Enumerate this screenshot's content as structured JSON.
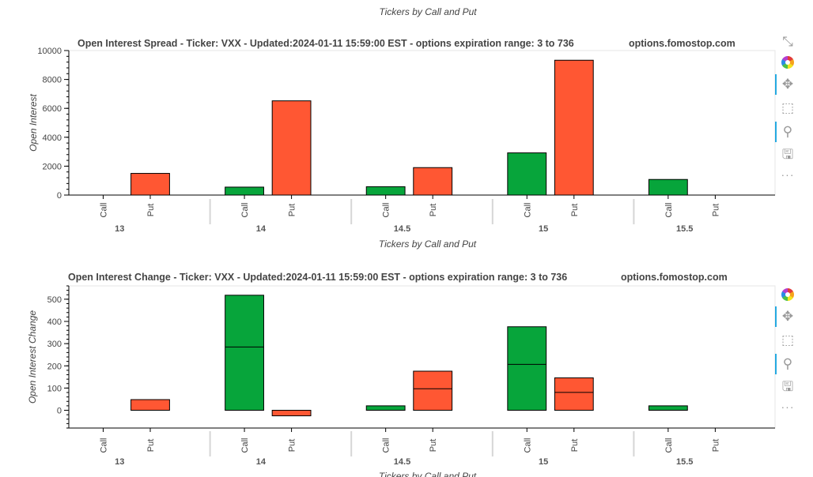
{
  "page": {
    "top_title": "Tickers by Call and Put"
  },
  "toolbar": {
    "icons": [
      "fullscreen-icon",
      "bokeh-logo-icon",
      "pan-icon",
      "box-zoom-icon",
      "wheel-zoom-icon",
      "save-icon",
      "more-icon"
    ]
  },
  "chart_data": [
    {
      "type": "bar",
      "title": "Open Interest Spread - Ticker: VXX - Updated:2024-01-11 15:59:00 EST - options expiration range: 3 to 736",
      "watermark": "options.fomostop.com",
      "xlabel": "Tickers by Call and Put",
      "ylabel": "Open Interest",
      "ylim": [
        0,
        10000
      ],
      "yticks": [
        "0",
        "2000",
        "4000",
        "6000",
        "8000",
        "10000"
      ],
      "groups": [
        "13",
        "14",
        "14.5",
        "15",
        "15.5"
      ],
      "subcategories": [
        "Call",
        "Put"
      ],
      "series": [
        {
          "name": "Call",
          "color": "#07a53b",
          "values": [
            0,
            550,
            580,
            2920,
            1080
          ]
        },
        {
          "name": "Put",
          "color": "#ff5733",
          "values": [
            1500,
            6520,
            1900,
            9330,
            0
          ]
        }
      ]
    },
    {
      "type": "bar",
      "title": "Open Interest Change - Ticker: VXX - Updated:2024-01-11 15:59:00 EST - options expiration range: 3 to 736",
      "watermark": "options.fomostop.com",
      "xlabel": "Tickers by Call and Put",
      "ylabel": "Open Interest Change",
      "ylim": [
        -80,
        560
      ],
      "yticks": [
        "0",
        "100",
        "200",
        "300",
        "400",
        "500"
      ],
      "groups": [
        "13",
        "14",
        "14.5",
        "15",
        "15.5"
      ],
      "subcategories": [
        "Call",
        "Put"
      ],
      "series": [
        {
          "name": "Call",
          "color": "#07a53b",
          "values": [
            0,
            518,
            20,
            376,
            20
          ]
        },
        {
          "name": "Put",
          "color": "#ff5733",
          "values": [
            48,
            -25,
            176,
            146,
            0
          ]
        }
      ]
    }
  ]
}
